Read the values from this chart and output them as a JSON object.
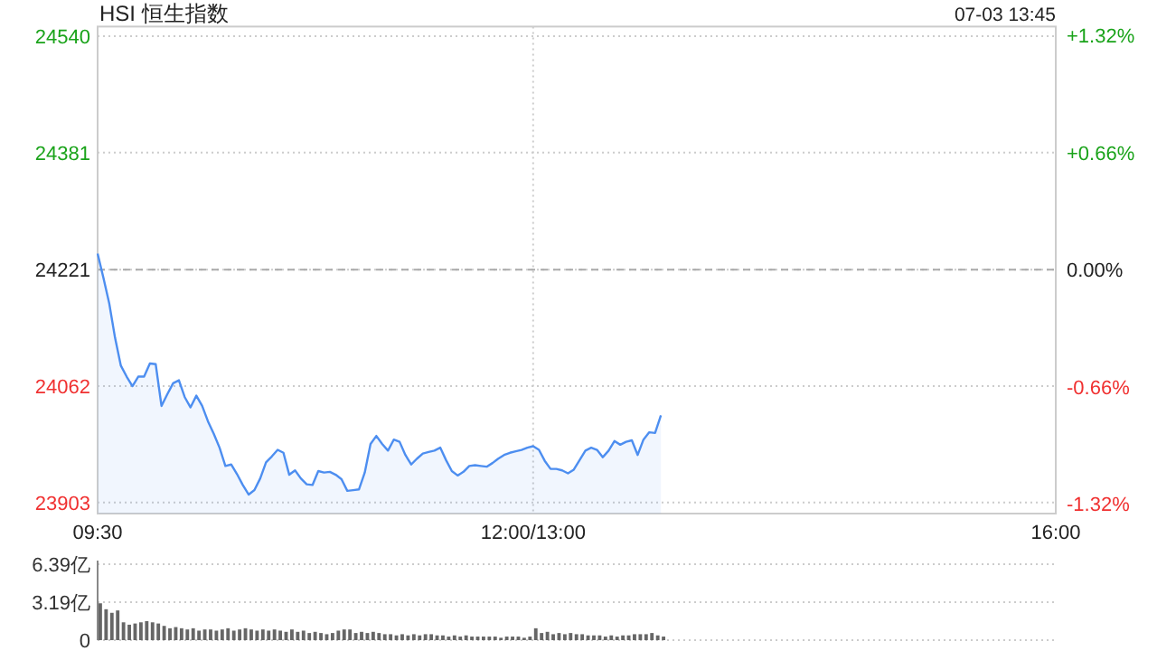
{
  "chart_data": [
    {
      "type": "area",
      "title": "HSI 恒生指数",
      "annotations": [
        "07-03 13:45"
      ],
      "categories": [
        "09:30",
        null,
        null,
        null,
        null,
        null,
        null,
        null,
        null,
        null,
        null,
        null,
        null,
        null,
        null,
        null,
        null,
        null,
        null,
        null,
        null,
        null,
        null,
        null,
        null,
        null,
        null,
        null,
        null,
        null,
        null,
        null,
        null,
        null,
        null,
        null,
        null,
        null,
        null,
        null,
        null,
        null,
        null,
        null,
        null,
        null,
        null,
        null,
        null,
        null,
        null,
        null,
        null,
        null,
        null,
        null,
        null,
        null,
        null,
        null,
        null,
        null,
        null,
        null,
        null,
        null,
        null,
        null,
        null,
        null,
        null,
        null,
        null,
        null,
        null,
        "12:00/13:00",
        null,
        null,
        null,
        null,
        null,
        null,
        null,
        null,
        null,
        null,
        null,
        null,
        null,
        null,
        null,
        null,
        null,
        null,
        null,
        null,
        null,
        null,
        null,
        null,
        null,
        null,
        null,
        null,
        null,
        null,
        null,
        null,
        null,
        null,
        null,
        null,
        null,
        null,
        null,
        null,
        null,
        null,
        null,
        null,
        null,
        null,
        null,
        null,
        null,
        null,
        null,
        null,
        null,
        null,
        null,
        null,
        null,
        null,
        null,
        null,
        null,
        null,
        null,
        null,
        null,
        null,
        null,
        null,
        null,
        null,
        null,
        null,
        null,
        null,
        null,
        null,
        null,
        null,
        null,
        null,
        null,
        null,
        null,
        null,
        null,
        null,
        null,
        null,
        null,
        "16:00"
      ],
      "series": [
        {
          "color": "#4d8ef0",
          "values": [
            24243,
            24210,
            24175,
            24128,
            24090,
            24075,
            24062,
            24075,
            24075,
            24093,
            24092,
            24035,
            24051,
            24066,
            24070,
            24047,
            24033,
            24049,
            24035,
            24014,
            23997,
            23978,
            23953,
            23955,
            23942,
            23927,
            23914,
            23920,
            23936,
            23958,
            23966,
            23975,
            23971,
            23941,
            23947,
            23936,
            23928,
            23927,
            23946,
            23944,
            23945,
            23941,
            23935,
            23919,
            23920,
            23921,
            23944,
            23983,
            23994,
            23983,
            23974,
            23989,
            23986,
            23968,
            23955,
            23963,
            23970,
            23972,
            23974,
            23978,
            23961,
            23946,
            23940,
            23945,
            23953,
            23954,
            23953,
            23952,
            23957,
            23963,
            23968,
            23971,
            23973,
            23975,
            23978,
            23980,
            23975,
            23960,
            23949,
            23949,
            23947,
            23943,
            23948,
            23961,
            23974,
            23978,
            23975,
            23965,
            23974,
            23987,
            23982,
            23986,
            23988,
            23968,
            23989,
            23999,
            23998,
            24022,
            null,
            null,
            null,
            null,
            null,
            null,
            null,
            null,
            null,
            null,
            null,
            null,
            null,
            null,
            null,
            null,
            null,
            null,
            null,
            null,
            null,
            null,
            null,
            null,
            null,
            null,
            null,
            null,
            null,
            null,
            null,
            null,
            null,
            null,
            null,
            null,
            null,
            null,
            null,
            null,
            null,
            null,
            null,
            null,
            null,
            null,
            null,
            null,
            null,
            null,
            null,
            null,
            null,
            null,
            null,
            null,
            null,
            null,
            null,
            null,
            null,
            null,
            null,
            null,
            null,
            null,
            null,
            null
          ]
        }
      ],
      "ylim": [
        23888,
        24553
      ],
      "yticks": [
        23903,
        24062,
        24221,
        24381,
        24540
      ],
      "y2lim": [
        -1.375,
        1.37
      ],
      "y2ticks": [
        {
          "value": -1.32,
          "label": "-1.32%"
        },
        {
          "value": -0.66,
          "label": "-0.66%"
        },
        {
          "value": 0,
          "label": "0.00%"
        },
        {
          "value": 0.66,
          "label": "+0.66%"
        },
        {
          "value": 1.32,
          "label": "+1.32%"
        }
      ],
      "grid": true,
      "ref_lines": [
        {
          "axis": "y",
          "value": 24221,
          "line_style": "dashed"
        }
      ]
    },
    {
      "type": "bar",
      "tick_labels": "y",
      "categories": [
        null,
        null,
        null,
        null,
        null,
        null,
        null,
        null,
        null,
        null,
        null,
        null,
        null,
        null,
        null,
        null,
        null,
        null,
        null,
        null,
        null,
        null,
        null,
        null,
        null,
        null,
        null,
        null,
        null,
        null,
        null,
        null,
        null,
        null,
        null,
        null,
        null,
        null,
        null,
        null,
        null,
        null,
        null,
        null,
        null,
        null,
        null,
        null,
        null,
        null,
        null,
        null,
        null,
        null,
        null,
        null,
        null,
        null,
        null,
        null,
        null,
        null,
        null,
        null,
        null,
        null,
        null,
        null,
        null,
        null,
        null,
        null,
        null,
        null,
        null,
        null,
        null,
        null,
        null,
        null,
        null,
        null,
        null,
        null,
        null,
        null,
        null,
        null,
        null,
        null,
        null,
        null,
        null,
        null,
        null,
        null,
        null,
        null,
        null,
        null,
        null,
        null,
        null,
        null,
        null,
        null,
        null,
        null,
        null,
        null,
        null,
        null,
        null,
        null,
        null,
        null,
        null,
        null,
        null,
        null,
        null,
        null,
        null,
        null,
        null,
        null,
        null,
        null,
        null,
        null,
        null,
        null,
        null,
        null,
        null,
        null,
        null,
        null,
        null,
        null,
        null,
        null,
        null,
        null,
        null,
        null,
        null,
        null,
        null,
        null,
        null,
        null,
        null,
        null,
        null,
        null,
        null,
        null,
        null,
        null,
        null,
        null,
        null,
        null,
        null,
        null
      ],
      "series": [
        {
          "color": "#666666",
          "values": [
            3.1,
            2.6,
            2.3,
            2.5,
            1.5,
            1.3,
            1.4,
            1.5,
            1.6,
            1.5,
            1.4,
            1.2,
            1.0,
            1.1,
            1.0,
            0.9,
            1.0,
            0.8,
            0.9,
            0.9,
            0.8,
            0.9,
            1.0,
            0.8,
            0.9,
            1.0,
            0.9,
            0.8,
            0.9,
            0.8,
            0.9,
            0.8,
            0.7,
            0.9,
            0.7,
            0.8,
            0.6,
            0.7,
            0.6,
            0.5,
            0.6,
            0.8,
            0.9,
            0.9,
            0.6,
            0.7,
            0.6,
            0.7,
            0.6,
            0.5,
            0.5,
            0.4,
            0.5,
            0.4,
            0.5,
            0.4,
            0.5,
            0.5,
            0.4,
            0.4,
            0.3,
            0.4,
            0.3,
            0.4,
            0.3,
            0.3,
            0.3,
            0.3,
            0.3,
            0.2,
            0.3,
            0.3,
            0.3,
            0.2,
            0.3,
            1.0,
            0.6,
            0.7,
            0.5,
            0.6,
            0.5,
            0.6,
            0.5,
            0.5,
            0.4,
            0.4,
            0.4,
            0.3,
            0.4,
            0.3,
            0.4,
            0.4,
            0.5,
            0.5,
            0.5,
            0.6,
            0.4,
            0.3,
            null,
            null,
            null,
            null,
            null,
            null,
            null,
            null,
            null,
            null,
            null,
            null,
            null,
            null,
            null,
            null,
            null,
            null,
            null,
            null,
            null,
            null,
            null,
            null,
            null,
            null,
            null,
            null,
            null,
            null,
            null,
            null,
            null,
            null,
            null,
            null,
            null,
            null,
            null,
            null,
            null,
            null,
            null,
            null,
            null,
            null,
            null,
            null,
            null,
            null,
            null,
            null,
            null,
            null,
            null,
            null,
            null,
            null,
            null,
            null,
            null,
            null,
            null,
            null,
            null,
            null,
            null,
            null
          ]
        }
      ],
      "ylim": [
        0,
        6.39
      ],
      "yticks": [
        0,
        {
          "value": 3.19,
          "label": "3.19亿"
        },
        {
          "value": 6.39,
          "label": "6.39亿"
        }
      ],
      "grid": "y"
    }
  ]
}
